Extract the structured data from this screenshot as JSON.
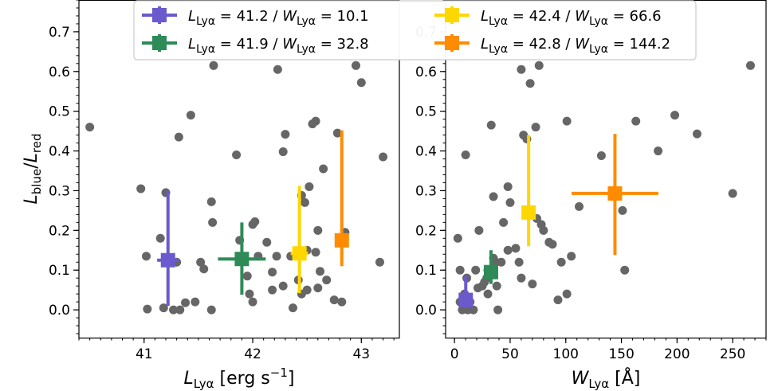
{
  "chart_data": [
    {
      "type": "scatter",
      "panel": "left",
      "xlabel": "L_Lyα [erg s^-1]",
      "xlabel_parts": {
        "main": "L",
        "sub": "Lyα",
        "unit": " [erg s",
        "sup": "−1",
        "close": "]"
      },
      "ylabel_parts": {
        "num": "L",
        "num_sub": "blue",
        "slash": "/",
        "den": "L",
        "den_sub": "red"
      },
      "xlim": [
        40.4,
        43.35
      ],
      "ylim": [
        -0.07,
        0.78
      ],
      "xticks": [
        41,
        42,
        43
      ],
      "xtick_labels": [
        "41",
        "42",
        "43"
      ],
      "yticks": [
        0.0,
        0.1,
        0.2,
        0.3,
        0.4,
        0.5,
        0.6,
        0.7
      ],
      "ytick_labels": [
        "0.0",
        "0.1",
        "0.2",
        "0.3",
        "0.4",
        "0.5",
        "0.6",
        "0.7"
      ],
      "points": [
        [
          40.5,
          0.46
        ],
        [
          40.97,
          0.305
        ],
        [
          41.02,
          0.135
        ],
        [
          41.03,
          0.002
        ],
        [
          41.15,
          0.18
        ],
        [
          41.18,
          0.005
        ],
        [
          41.2,
          0.295
        ],
        [
          41.27,
          0.0
        ],
        [
          41.3,
          0.12
        ],
        [
          41.32,
          0.435
        ],
        [
          41.33,
          0.0
        ],
        [
          41.38,
          0.018
        ],
        [
          41.43,
          0.49
        ],
        [
          41.47,
          0.02
        ],
        [
          41.52,
          0.12
        ],
        [
          41.55,
          0.103
        ],
        [
          41.62,
          0.272
        ],
        [
          41.63,
          0.22
        ],
        [
          41.64,
          0.615
        ],
        [
          41.62,
          0.0
        ],
        [
          41.85,
          0.39
        ],
        [
          41.88,
          0.175
        ],
        [
          41.95,
          0.085
        ],
        [
          41.97,
          0.04
        ],
        [
          42.0,
          0.02
        ],
        [
          42.0,
          0.215
        ],
        [
          42.02,
          0.222
        ],
        [
          42.05,
          0.135
        ],
        [
          42.13,
          0.17
        ],
        [
          42.18,
          0.095
        ],
        [
          42.23,
          0.605
        ],
        [
          42.18,
          0.05
        ],
        [
          42.22,
          0.135
        ],
        [
          42.28,
          0.06
        ],
        [
          42.28,
          0.398
        ],
        [
          42.3,
          0.442
        ],
        [
          42.35,
          0.135
        ],
        [
          42.37,
          0.005
        ],
        [
          42.42,
          0.075
        ],
        [
          42.45,
          0.04
        ],
        [
          42.48,
          0.27
        ],
        [
          42.5,
          0.15
        ],
        [
          42.5,
          0.05
        ],
        [
          42.52,
          0.31
        ],
        [
          42.55,
          0.468
        ],
        [
          42.58,
          0.475
        ],
        [
          42.58,
          0.145
        ],
        [
          42.6,
          0.2
        ],
        [
          42.62,
          0.097
        ],
        [
          42.65,
          0.355
        ],
        [
          42.68,
          0.075
        ],
        [
          42.75,
          0.025
        ],
        [
          42.78,
          0.445
        ],
        [
          42.82,
          0.02
        ],
        [
          42.85,
          0.195
        ],
        [
          42.95,
          0.615
        ],
        [
          43.0,
          0.572
        ],
        [
          43.2,
          0.385
        ],
        [
          43.17,
          0.12
        ],
        [
          42.6,
          0.055
        ],
        [
          42.45,
          0.288
        ]
      ],
      "errorbars": [
        {
          "legend": 0,
          "x": 41.22,
          "y": 0.125,
          "xerr": 0.1,
          "yerr_low": 0.115,
          "yerr_high": 0.175
        },
        {
          "legend": 1,
          "x": 41.9,
          "y": 0.128,
          "xerr": 0.22,
          "yerr_low": 0.09,
          "yerr_high": 0.092
        },
        {
          "legend": 2,
          "x": 42.43,
          "y": 0.142,
          "xerr": 0.08,
          "yerr_low": 0.1,
          "yerr_high": 0.17
        },
        {
          "legend": 3,
          "x": 42.82,
          "y": 0.175,
          "xerr": 0.04,
          "yerr_low": 0.065,
          "yerr_high": 0.277
        }
      ]
    },
    {
      "type": "scatter",
      "panel": "right",
      "xlabel": "W_Lyα [Å]",
      "xlabel_parts": {
        "main": "W",
        "sub": "Lyα",
        "unit": " [Å]"
      },
      "xlim": [
        -8,
        280
      ],
      "ylim": [
        -0.07,
        0.78
      ],
      "xticks": [
        0,
        50,
        100,
        150,
        200,
        250
      ],
      "xtick_labels": [
        "0",
        "50",
        "100",
        "150",
        "200",
        "250"
      ],
      "yticks": [
        0.0,
        0.1,
        0.2,
        0.3,
        0.4,
        0.5,
        0.6,
        0.7
      ],
      "ytick_labels": [
        "0.0",
        "0.1",
        "0.2",
        "0.3",
        "0.4",
        "0.5",
        "0.6",
        "0.7"
      ],
      "points": [
        [
          3,
          0.18
        ],
        [
          5,
          0.1
        ],
        [
          5,
          0.02
        ],
        [
          7,
          0.0
        ],
        [
          9,
          0.04
        ],
        [
          10,
          0.39
        ],
        [
          11,
          0.08
        ],
        [
          12,
          0.0
        ],
        [
          14,
          0.02
        ],
        [
          17,
          0.0
        ],
        [
          19,
          0.1
        ],
        [
          21,
          0.055
        ],
        [
          22,
          0.2
        ],
        [
          25,
          0.06
        ],
        [
          27,
          0.07
        ],
        [
          29,
          0.08
        ],
        [
          30,
          0.04
        ],
        [
          30,
          0.1
        ],
        [
          33,
          0.465
        ],
        [
          35,
          0.13
        ],
        [
          35,
          0.285
        ],
        [
          37,
          0.12
        ],
        [
          38,
          0.06
        ],
        [
          39,
          0.0
        ],
        [
          44,
          0.22
        ],
        [
          48,
          0.31
        ],
        [
          48,
          0.15
        ],
        [
          50,
          0.27
        ],
        [
          55,
          0.155
        ],
        [
          60,
          0.605
        ],
        [
          60,
          0.08
        ],
        [
          62,
          0.44
        ],
        [
          65,
          0.43
        ],
        [
          68,
          0.57
        ],
        [
          70,
          0.065
        ],
        [
          73,
          0.46
        ],
        [
          74,
          0.23
        ],
        [
          76,
          0.615
        ],
        [
          78,
          0.215
        ],
        [
          80,
          0.2
        ],
        [
          85,
          0.17
        ],
        [
          88,
          0.165
        ],
        [
          93,
          0.025
        ],
        [
          96,
          0.12
        ],
        [
          101,
          0.475
        ],
        [
          101,
          0.04
        ],
        [
          105,
          0.135
        ],
        [
          112,
          0.26
        ],
        [
          132,
          0.388
        ],
        [
          151,
          0.25
        ],
        [
          153,
          0.1
        ],
        [
          163,
          0.475
        ],
        [
          183,
          0.4
        ],
        [
          198,
          0.49
        ],
        [
          218,
          0.443
        ],
        [
          250,
          0.293
        ],
        [
          266,
          0.615
        ],
        [
          58,
          0.12
        ],
        [
          42,
          0.12
        ]
      ],
      "errorbars": [
        {
          "legend": 0,
          "x": 10.1,
          "y": 0.025,
          "xerr": 5,
          "yerr_low": 0.02,
          "yerr_high": 0.06
        },
        {
          "legend": 1,
          "x": 32.8,
          "y": 0.095,
          "xerr": 6,
          "yerr_low": 0.03,
          "yerr_high": 0.055
        },
        {
          "legend": 2,
          "x": 66.6,
          "y": 0.245,
          "xerr": 6,
          "yerr_low": 0.085,
          "yerr_high": 0.195
        },
        {
          "legend": 3,
          "x": 144.2,
          "y": 0.293,
          "xerr": 39,
          "yerr_low": 0.155,
          "yerr_high": 0.15
        }
      ]
    }
  ],
  "legend": {
    "placement": "top",
    "entries": [
      {
        "color": "#6a5acd",
        "l_val": "41.2",
        "w_val": "10.1"
      },
      {
        "color": "#2e8b57",
        "l_val": "41.9",
        "w_val": "32.8"
      },
      {
        "color": "#ffd700",
        "l_val": "42.4",
        "w_val": "66.6"
      },
      {
        "color": "#ff8c00",
        "l_val": "42.8",
        "w_val": "144.2"
      }
    ],
    "label_parts": {
      "l": "L",
      "w": "W",
      "sub": "Lyα",
      "eq": " = ",
      "sep": " / "
    }
  },
  "colors": {
    "points": "#666666"
  }
}
